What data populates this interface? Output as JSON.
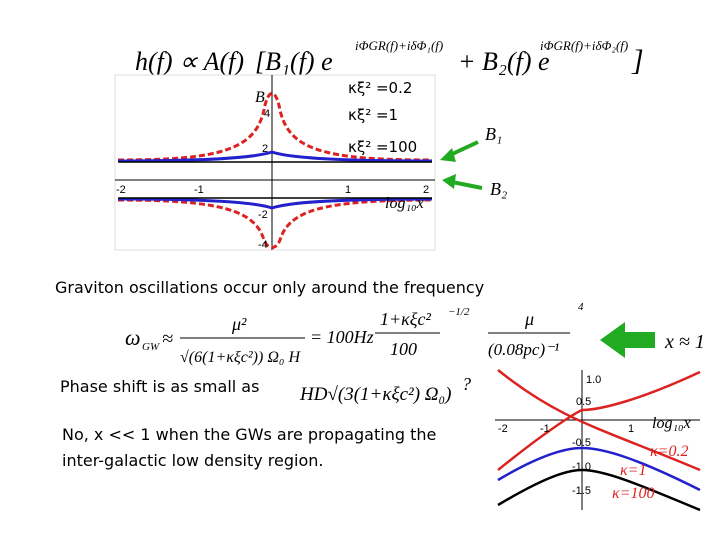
{
  "top_formula": {
    "lhs": "h(f) ∝ A(f)",
    "term1": "[B₁(f) e",
    "exp1": "iΦGR(f)+iδΦ₁(f)",
    "term2": "+ B₂(f) e",
    "exp2": "iΦGR(f)+iδΦ₂(f)",
    "close": "]"
  },
  "left_plot": {
    "y_label": "B",
    "y_tick_labels": [
      "4",
      "2",
      "-2",
      "-4"
    ],
    "x_tick_labels": [
      "-2",
      "-1",
      "1",
      "2"
    ],
    "x_label": "log₁₀x",
    "legend": [
      "κξ² =0.2",
      "κξ² =1",
      "κξ² =100"
    ],
    "arrow_labels": [
      "B₁",
      "B₂"
    ]
  },
  "sentence": "Graviton oscillations occur only  around  the frequency",
  "frequency_formula": {
    "lhs": "ω",
    "lhs_sub": "GW",
    "approx": "≈",
    "num": "μ²",
    "den": "√(6(1+κξc²)) Ω₀ H",
    "equals": "= 100Hz",
    "ratio_num": "1+κξc²",
    "ratio_den": "100",
    "exp1": "−1/2",
    "mu_num": "μ",
    "mu_den": "(0.08pc)⁻¹",
    "exp2": "4"
  },
  "x_condition": "x ≈ 1",
  "phase_text": "Phase shift is as small as",
  "phase_formula": "HD√(3(1+κξc²) Ω₀)",
  "question": "?",
  "answer_lines": [
    "No, x << 1 when the GWs are propagating  the",
    "inter-galactic low density region."
  ],
  "right_plot": {
    "y_tick_labels": [
      "1.0",
      "0.5",
      "-0.5",
      "-1.0",
      "-1.5"
    ],
    "x_tick_labels": [
      "-2",
      "-1",
      "1"
    ],
    "x_label": "log₁₀x",
    "legend": [
      "κ=0.2",
      "κ=1",
      "κ=100"
    ]
  }
}
